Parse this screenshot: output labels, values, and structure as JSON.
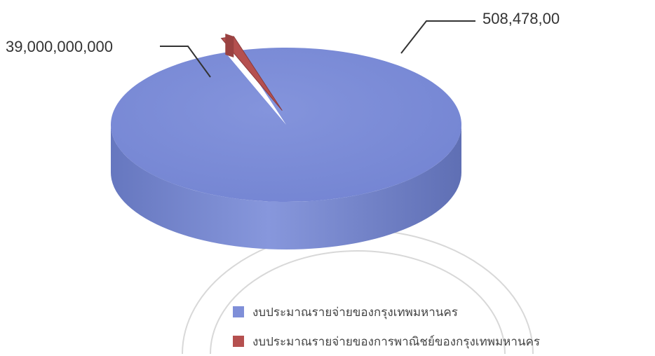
{
  "chart_data": {
    "type": "pie",
    "categories": [
      "งบประมาณรายจ่ายของกรุงเทพมหานคร",
      "งบประมาณรายจ่ายของการพาณิชย์ของกรุงเทพมหานคร"
    ],
    "values": [
      39000000000,
      508478
    ],
    "data_labels": [
      "39,000,000,000",
      "508,478,00"
    ],
    "colors": [
      "#7f8fd8",
      "#b5504f"
    ],
    "legend_position": "bottom",
    "style": "3d"
  }
}
